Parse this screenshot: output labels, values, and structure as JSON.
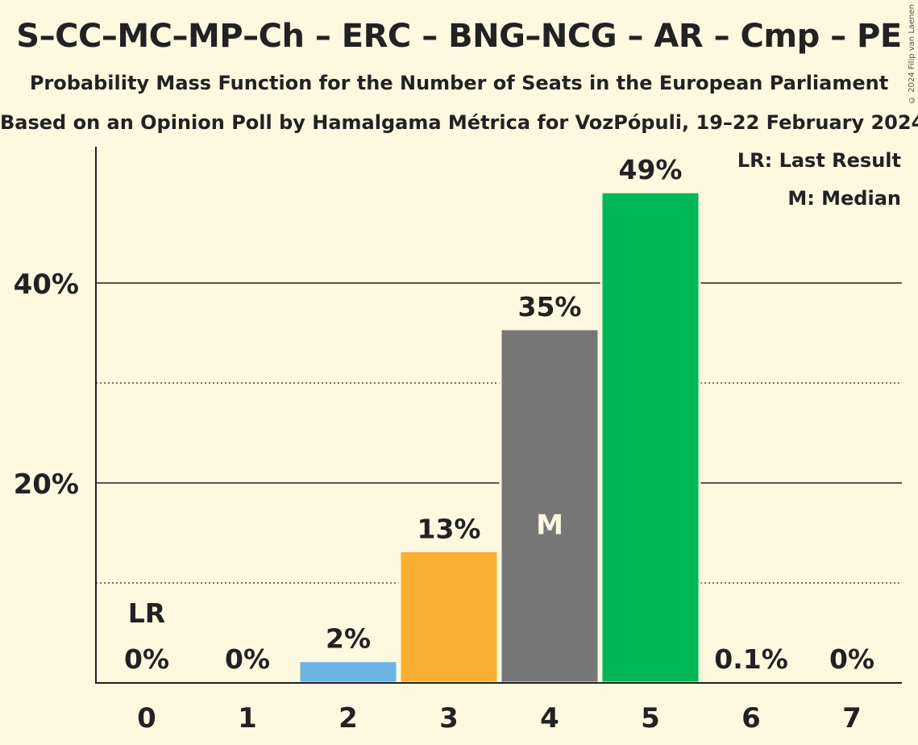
{
  "title": "S–CC–MC–MP–Ch – ERC – BNG–NCG – AR – Cmp – PE",
  "subtitle1": "Probability Mass Function for the Number of Seats in the European Parliament",
  "subtitle2": "Based on an Opinion Poll by Hamalgama Métrica for VozPópuli, 19–22 February 2024",
  "copyright": "© 2024 Filip van Laenen",
  "legend": {
    "lr": "LR: Last Result",
    "median": "M: Median"
  },
  "chart_data": {
    "type": "bar",
    "categories": [
      "0",
      "1",
      "2",
      "3",
      "4",
      "5",
      "6",
      "7"
    ],
    "values": [
      0,
      0,
      2.2,
      13.2,
      35.4,
      49.1,
      0.1,
      0
    ],
    "labels": [
      "0%",
      "0%",
      "2%",
      "13%",
      "35%",
      "49%",
      "0.1%",
      "0%"
    ],
    "colors": [
      "#6cb4e4",
      "#6cb4e4",
      "#6cb4e4",
      "#fbb034",
      "#767676",
      "#00b757",
      "#00b757",
      "#00b757"
    ],
    "ylim": [
      0,
      52
    ],
    "yticks": [
      20,
      40
    ],
    "ytick_labels": [
      "20%",
      "40%"
    ],
    "minor_gridlines": [
      10,
      30
    ],
    "last_result_index": 0,
    "last_result_label": "LR",
    "median_index": 4,
    "median_label": "M"
  }
}
